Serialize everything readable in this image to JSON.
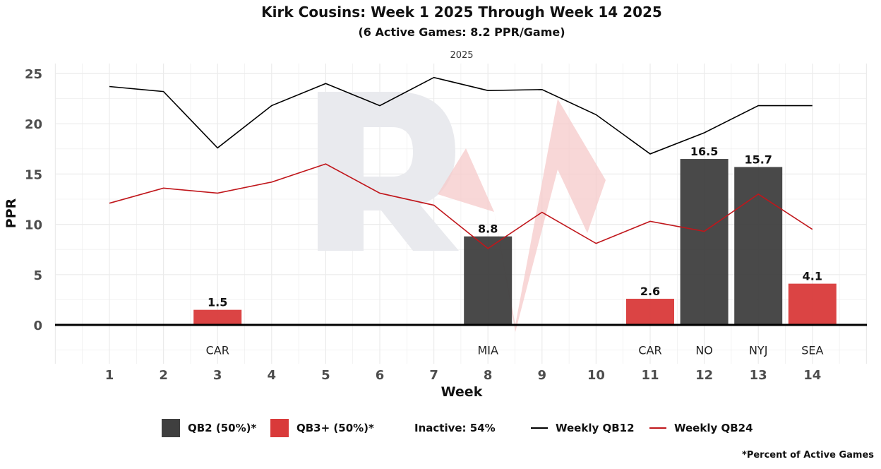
{
  "chart_data": {
    "type": "bar",
    "title": "Kirk Cousins: Week 1 2025 Through Week 14 2025",
    "subtitle": "(6 Active Games: 8.2 PPR/Game)",
    "facet_label": "2025",
    "xlabel": "Week",
    "ylabel": "PPR",
    "x": [
      1,
      2,
      3,
      4,
      5,
      6,
      7,
      8,
      9,
      10,
      11,
      12,
      13,
      14
    ],
    "ylim": [
      -3.5,
      26
    ],
    "yticks": [
      0,
      5,
      10,
      15,
      20,
      25
    ],
    "grid": true,
    "bars": [
      {
        "week": 3,
        "value": 1.5,
        "label": "1.5",
        "opponent": "CAR",
        "tier": "QB3+"
      },
      {
        "week": 8,
        "value": 8.8,
        "label": "8.8",
        "opponent": "MIA",
        "tier": "QB2"
      },
      {
        "week": 11,
        "value": 2.6,
        "label": "2.6",
        "opponent": "CAR",
        "tier": "QB3+"
      },
      {
        "week": 12,
        "value": 16.5,
        "label": "16.5",
        "opponent": "NO",
        "tier": "QB2"
      },
      {
        "week": 13,
        "value": 15.7,
        "label": "15.7",
        "opponent": "NYJ",
        "tier": "QB2"
      },
      {
        "week": 14,
        "value": 4.1,
        "label": "4.1",
        "opponent": "SEA",
        "tier": "QB3+"
      }
    ],
    "series": [
      {
        "name": "Weekly QB12",
        "color": "#000000",
        "values": [
          23.7,
          23.2,
          17.6,
          21.8,
          24.0,
          21.8,
          24.6,
          23.3,
          23.4,
          20.9,
          17.0,
          19.1,
          21.8,
          21.8
        ]
      },
      {
        "name": "Weekly QB24",
        "color": "#c0161b",
        "values": [
          12.1,
          13.6,
          13.1,
          14.2,
          16.0,
          13.1,
          11.9,
          7.6,
          11.2,
          8.1,
          10.3,
          9.3,
          13.0,
          9.5
        ]
      }
    ],
    "legend": {
      "position": "bottom",
      "items": [
        {
          "label": "QB2 (50%)*",
          "color": "#3f3f3f",
          "kind": "bar"
        },
        {
          "label": "QB3+ (50%)*",
          "color": "#d93a3a",
          "kind": "bar"
        },
        {
          "label": "Inactive: 54%",
          "kind": "text"
        },
        {
          "label": "Weekly QB12",
          "color": "#000000",
          "kind": "line"
        },
        {
          "label": "Weekly QB24",
          "color": "#c0161b",
          "kind": "line"
        }
      ]
    },
    "caption": "*Percent of Active Games",
    "colors": {
      "QB2": "#3f3f3f",
      "QB3+": "#d93a3a"
    }
  }
}
